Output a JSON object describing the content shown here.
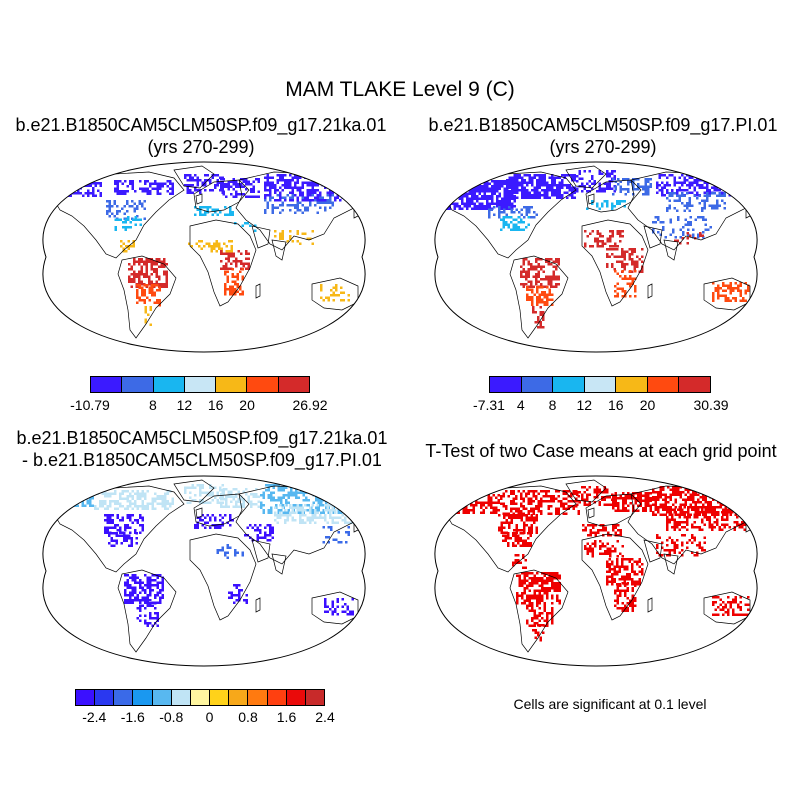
{
  "title": "MAM TLAKE Level 9 (C)",
  "panels": [
    {
      "title_line1": "b.e21.B1850CAM5CLM50SP.f09_g17.21ka.01",
      "title_line2": "(yrs 270-299)"
    },
    {
      "title_line1": "b.e21.B1850CAM5CLM50SP.f09_g17.PI.01",
      "title_line2": "(yrs 270-299)"
    },
    {
      "title_line1": "b.e21.B1850CAM5CLM50SP.f09_g17.21ka.01",
      "title_line2": "- b.e21.B1850CAM5CLM50SP.f09_g17.PI.01"
    },
    {
      "title_line1": "T-Test of two Case means at each grid point"
    }
  ],
  "colorbars": [
    {
      "colors": [
        "#3b1aff",
        "#3d6ae6",
        "#19b6f0",
        "#c8e6f5",
        "#f7b817",
        "#ff4a10",
        "#d42a2a"
      ],
      "ticks": [
        "-10.79",
        "8",
        "12",
        "16",
        "20",
        "26.92"
      ]
    },
    {
      "colors": [
        "#3b1aff",
        "#3d6ae6",
        "#19b6f0",
        "#c8e6f5",
        "#f7b817",
        "#ff4a10",
        "#d42a2a"
      ],
      "ticks": [
        "-7.31",
        "4",
        "8",
        "12",
        "16",
        "20",
        "30.39"
      ]
    },
    {
      "colors": [
        "#3b10ff",
        "#2a38f0",
        "#3a6ae8",
        "#1a98f0",
        "#58b8f0",
        "#c0e4f5",
        "#fff6a0",
        "#ffd21a",
        "#f7a81a",
        "#ff7a10",
        "#ff4010",
        "#ea0a0a",
        "#c82a2a"
      ],
      "ticks": [
        "-2.4",
        "-1.6",
        "-0.8",
        "0",
        "0.8",
        "1.6",
        "2.4"
      ]
    }
  ],
  "significance_note": "Cells are significant at 0.1 level",
  "map_colors": {
    "ocean": "#ffffff",
    "coast": "#000000",
    "significant": "#ee0000"
  }
}
